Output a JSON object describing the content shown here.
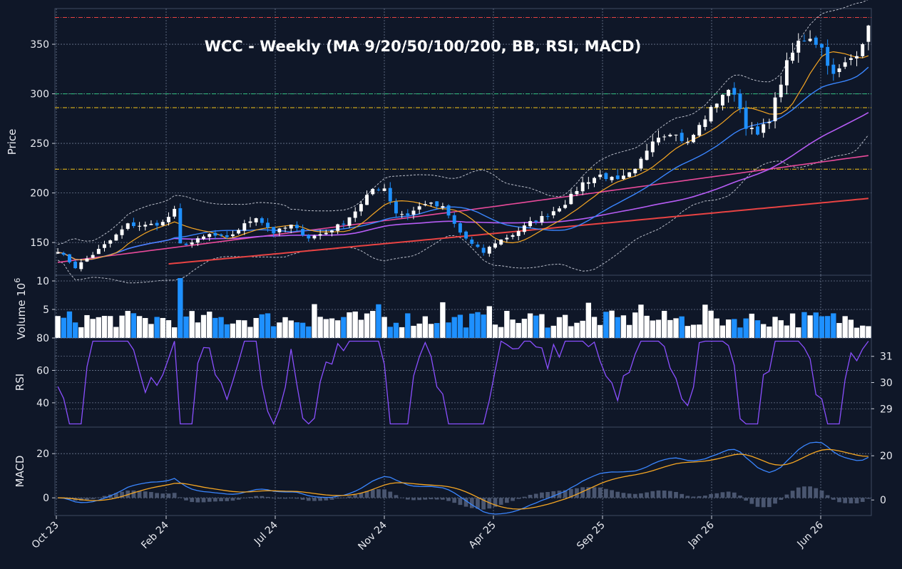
{
  "chart_data": {
    "type": "candlestick",
    "title": "WCC  -  Weekly  (MA 9/20/50/100/200, BB, RSI, MACD)",
    "x_tick_labels": [
      "Oct 23",
      "Feb 24",
      "Jul 24",
      "Nov 24",
      "Apr 25",
      "Sep 25",
      "Jan 26",
      "Jun 26"
    ],
    "colors": {
      "background": "#0f1728",
      "up": "#ffffff",
      "down": "#1e90ff",
      "ma9": "#f5a623",
      "ma20": "#3a86ff",
      "ma50": "#b65cf5",
      "ma100": "#e84a9a",
      "ma200": "#e84343",
      "bb": "#b8bcc8",
      "rsi": "#8a4fff",
      "macd": "#3a86ff",
      "signal": "#f5a623",
      "hist": "#4a5670"
    },
    "price_panel": {
      "ylabel": "Price",
      "yticks": [
        150,
        200,
        250,
        300,
        350
      ],
      "ylim": [
        117,
        386
      ],
      "hlines": [
        {
          "value": 377,
          "color": "#e84343"
        },
        {
          "value": 300,
          "color": "#2ec27e"
        },
        {
          "value": 286,
          "color": "#f5c518"
        },
        {
          "value": 224,
          "color": "#f5c518"
        }
      ],
      "close_anchors": [
        [
          0,
          142
        ],
        [
          3,
          125
        ],
        [
          6,
          138
        ],
        [
          9,
          152
        ],
        [
          12,
          168
        ],
        [
          15,
          167
        ],
        [
          18,
          170
        ],
        [
          20,
          182
        ],
        [
          21,
          148
        ],
        [
          23,
          150
        ],
        [
          26,
          158
        ],
        [
          29,
          154
        ],
        [
          32,
          168
        ],
        [
          34,
          176
        ],
        [
          37,
          160
        ],
        [
          40,
          167
        ],
        [
          43,
          155
        ],
        [
          46,
          160
        ],
        [
          49,
          170
        ],
        [
          52,
          188
        ],
        [
          54,
          204
        ],
        [
          56,
          205
        ],
        [
          58,
          180
        ],
        [
          60,
          178
        ],
        [
          63,
          190
        ],
        [
          66,
          185
        ],
        [
          69,
          160
        ],
        [
          71,
          148
        ],
        [
          73,
          140
        ],
        [
          75,
          150
        ],
        [
          78,
          158
        ],
        [
          81,
          170
        ],
        [
          84,
          178
        ],
        [
          87,
          190
        ],
        [
          90,
          210
        ],
        [
          93,
          218
        ],
        [
          96,
          212
        ],
        [
          99,
          222
        ],
        [
          102,
          255
        ],
        [
          105,
          262
        ],
        [
          108,
          250
        ],
        [
          111,
          276
        ],
        [
          114,
          300
        ],
        [
          116,
          302
        ],
        [
          118,
          268
        ],
        [
          120,
          258
        ],
        [
          122,
          275
        ],
        [
          125,
          330
        ],
        [
          127,
          352
        ],
        [
          129,
          358
        ],
        [
          131,
          346
        ],
        [
          133,
          318
        ],
        [
          135,
          330
        ],
        [
          137,
          342
        ],
        [
          139,
          365
        ]
      ]
    },
    "volume_panel": {
      "ylabel": "Volume  10",
      "exponent": "6",
      "yticks": [
        5,
        10
      ],
      "ylim": [
        0,
        11
      ]
    },
    "rsi_panel": {
      "ylabel": "RSI",
      "yticks": [
        40,
        60,
        80
      ],
      "ylim": [
        25,
        80
      ],
      "right_ticks": [
        29,
        30,
        31
      ],
      "right_ylim": [
        28.3,
        31.7
      ]
    },
    "macd_panel": {
      "ylabel": "MACD",
      "yticks": [
        0,
        20
      ],
      "ylim": [
        -8,
        32
      ],
      "right_ticks": [
        0,
        20
      ]
    }
  }
}
